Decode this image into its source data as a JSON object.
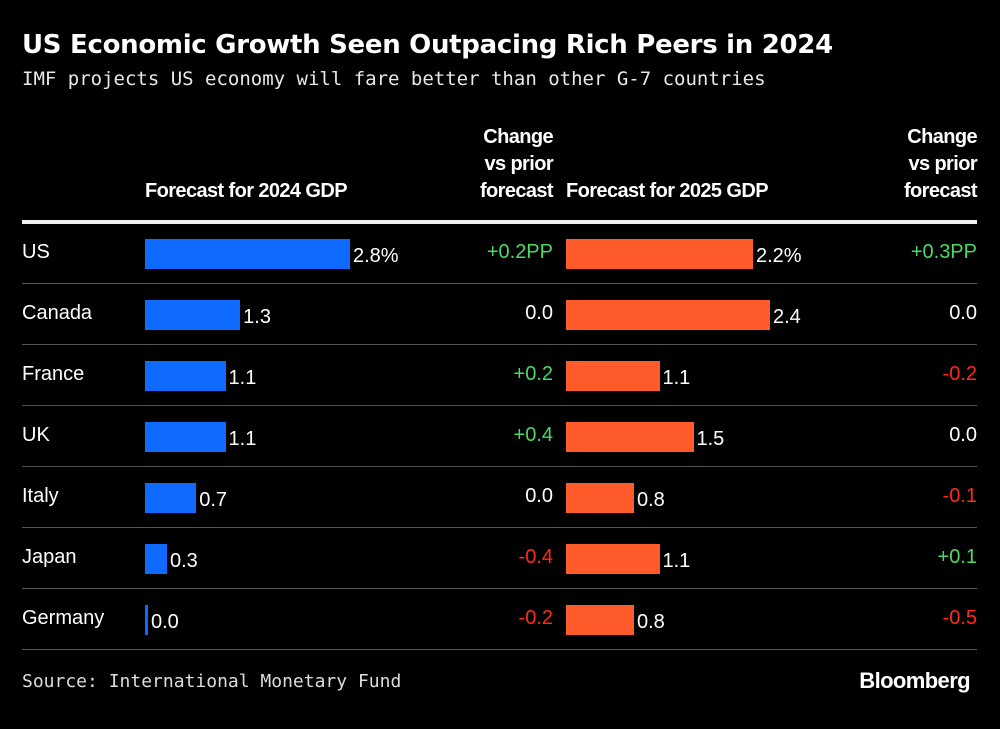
{
  "title": "US Economic Growth Seen Outpacing Rich Peers in 2024",
  "subtitle": "IMF projects US economy will fare better than other G-7 countries",
  "source": "Source: International Monetary Fund",
  "logo": "Bloomberg",
  "colors": {
    "bar_2024": "#0f6bff",
    "bar_2025": "#ff5a2a",
    "positive": "#4cd964",
    "negative": "#ff2a1a",
    "neutral": "#ffffff"
  },
  "chart_data": {
    "type": "table",
    "columns": [
      "",
      "Forecast for 2024 GDP",
      "Change vs prior forecast",
      "Forecast for 2025 GDP",
      "Change vs prior forecast"
    ],
    "headers": {
      "gdp2024": "Forecast for 2024 GDP",
      "chg2024": [
        "Change",
        "vs prior",
        "forecast"
      ],
      "gdp2025": "Forecast for 2025 GDP",
      "chg2025": [
        "Change",
        "vs prior",
        "forecast"
      ]
    },
    "rows": [
      {
        "country": "US",
        "gdp2024": 2.8,
        "gdp2024_label": "2.8%",
        "chg2024": "+0.2PP",
        "gdp2025": 2.2,
        "gdp2025_label": "2.2%",
        "chg2025": "+0.3PP"
      },
      {
        "country": "Canada",
        "gdp2024": 1.3,
        "gdp2024_label": "1.3",
        "chg2024": "0.0",
        "gdp2025": 2.4,
        "gdp2025_label": "2.4",
        "chg2025": "0.0"
      },
      {
        "country": "France",
        "gdp2024": 1.1,
        "gdp2024_label": "1.1",
        "chg2024": "+0.2",
        "gdp2025": 1.1,
        "gdp2025_label": "1.1",
        "chg2025": "-0.2"
      },
      {
        "country": "UK",
        "gdp2024": 1.1,
        "gdp2024_label": "1.1",
        "chg2024": "+0.4",
        "gdp2025": 1.5,
        "gdp2025_label": "1.5",
        "chg2025": "0.0"
      },
      {
        "country": "Italy",
        "gdp2024": 0.7,
        "gdp2024_label": "0.7",
        "chg2024": "0.0",
        "gdp2025": 0.8,
        "gdp2025_label": "0.8",
        "chg2025": "-0.1"
      },
      {
        "country": "Japan",
        "gdp2024": 0.3,
        "gdp2024_label": "0.3",
        "chg2024": "-0.4",
        "gdp2025": 1.1,
        "gdp2025_label": "1.1",
        "chg2025": "+0.1"
      },
      {
        "country": "Germany",
        "gdp2024": 0.0,
        "gdp2024_label": "0.0",
        "chg2024": "-0.2",
        "gdp2025": 0.8,
        "gdp2025_label": "0.8",
        "chg2025": "-0.5"
      }
    ]
  }
}
